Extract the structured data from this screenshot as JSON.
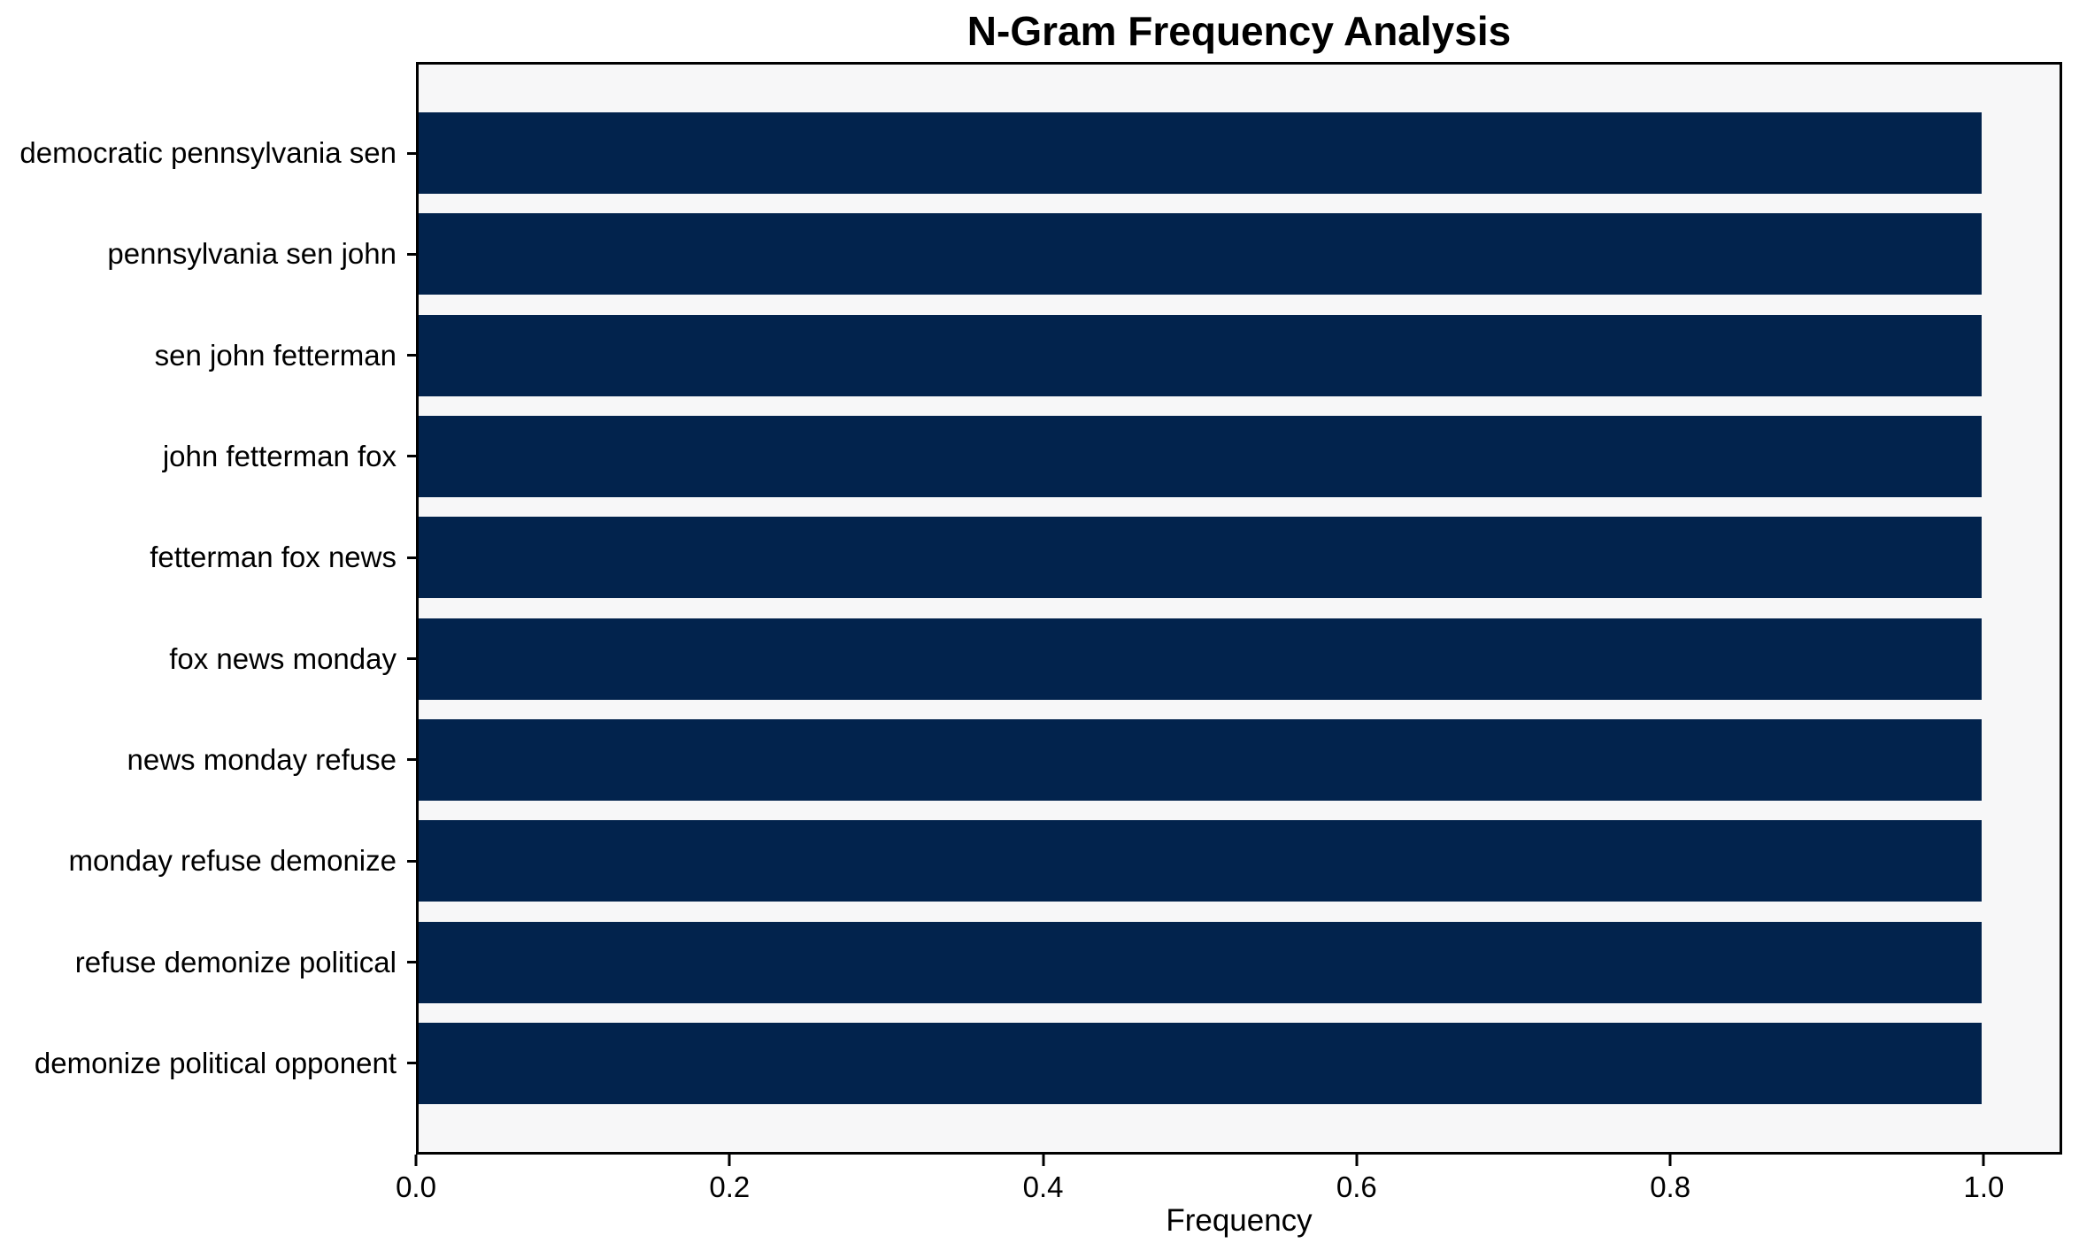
{
  "chart_data": {
    "type": "bar",
    "orientation": "horizontal",
    "title": "N-Gram Frequency Analysis",
    "xlabel": "Frequency",
    "ylabel": "",
    "categories": [
      "democratic pennsylvania sen",
      "pennsylvania sen john",
      "sen john fetterman",
      "john fetterman fox",
      "fetterman fox news",
      "fox news monday",
      "news monday refuse",
      "monday refuse demonize",
      "refuse demonize political",
      "demonize political opponent"
    ],
    "values": [
      1.0,
      1.0,
      1.0,
      1.0,
      1.0,
      1.0,
      1.0,
      1.0,
      1.0,
      1.0
    ],
    "xlim": [
      0,
      1.05
    ],
    "x_ticks": [
      0.0,
      0.2,
      0.4,
      0.6,
      0.8,
      1.0
    ],
    "x_tick_labels": [
      "0.0",
      "0.2",
      "0.4",
      "0.6",
      "0.8",
      "1.0"
    ],
    "grid": false,
    "legend": null,
    "colors": {
      "bar": "#02234d",
      "plot_background": "#f7f7f8",
      "figure_background": "#ffffff",
      "axis_line": "#000000",
      "text": "#000000"
    }
  }
}
